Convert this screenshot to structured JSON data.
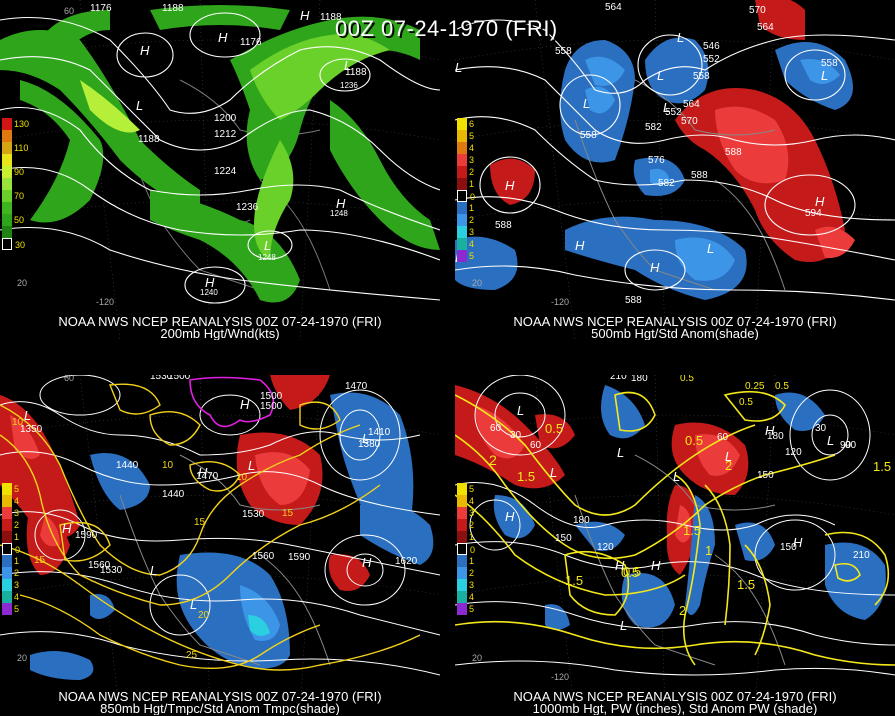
{
  "title": "00Z 07-24-1970 (FRI)",
  "panels": [
    {
      "id": "p200",
      "caption_line1": "NOAA NWS NCEP REANALYSIS 00Z 07-24-1970 (FRI)",
      "caption_line2": "200mb Hgt/Wnd(kts)",
      "legend_labels": [
        "130",
        "110",
        "90",
        "70",
        "50",
        "30"
      ],
      "contour_labels": [
        "1176",
        "1188",
        "1188",
        "1176",
        "1200",
        "1212",
        "1224",
        "1236",
        "1188",
        "1248",
        "1240",
        "1248",
        "1236",
        "1188"
      ],
      "highs_lows": [
        "H",
        "H",
        "H",
        "L",
        "L",
        "H",
        "H",
        "L"
      ],
      "lat_labels": [
        "20",
        "-120",
        "60"
      ],
      "colors": {
        "wind_light": "#b6ef3a",
        "wind_mid": "#69d129",
        "wind_dark": "#2fa51c"
      }
    },
    {
      "id": "p500",
      "caption_line1": "NOAA NWS NCEP REANALYSIS 00Z 07-24-1970 (FRI)",
      "caption_line2": "500mb Hgt/Std Anom(shade)",
      "legend_labels": [
        "6",
        "5",
        "4",
        "3",
        "2",
        "1",
        "0",
        "1",
        "2",
        "3",
        "4",
        "5"
      ],
      "contour_labels": [
        "564",
        "570",
        "558",
        "558",
        "564",
        "558",
        "552",
        "546",
        "564",
        "570",
        "558",
        "552",
        "576",
        "582",
        "588",
        "588",
        "594",
        "588",
        "588",
        "582"
      ],
      "highs_lows": [
        "L",
        "L",
        "L",
        "L",
        "L",
        "L",
        "H",
        "H",
        "H",
        "L",
        "H",
        "L"
      ],
      "lat_labels": [
        "-120",
        "20"
      ],
      "colors": {
        "pos": "#c41a1a",
        "pos_light": "#ec3b3b",
        "neg": "#2a6fc0",
        "neg_light": "#3d95e8"
      }
    },
    {
      "id": "p850",
      "caption_line1": "NOAA NWS NCEP REANALYSIS 00Z 07-24-1970 (FRI)",
      "caption_line2": "850mb Hgt/Tmpc/Std Anom Tmpc(shade)",
      "legend_labels": [
        "5",
        "4",
        "3",
        "2",
        "1",
        "0",
        "1",
        "2",
        "3",
        "4",
        "5"
      ],
      "contour_labels": [
        "1530",
        "1500",
        "1470",
        "1500",
        "1410",
        "1380",
        "1350",
        "1440",
        "1440",
        "1470",
        "1530",
        "1590",
        "1560",
        "1590",
        "1620",
        "1560",
        "1500",
        "1530",
        "10",
        "15",
        "10",
        "10",
        "15",
        "25",
        "20",
        "15"
      ],
      "highs_lows": [
        "L",
        "L",
        "H",
        "L",
        "H",
        "H",
        "L",
        "L",
        "H"
      ],
      "lat_labels": [
        "60",
        "20"
      ],
      "colors": {
        "temp": "#f4d21a",
        "magenta": "#e020e0"
      }
    },
    {
      "id": "p1000",
      "caption_line1": "NOAA NWS NCEP REANALYSIS 00Z 07-24-1970 (FRI)",
      "caption_line2": "1000mb Hgt, PW (inches), Std Anom PW (shade)",
      "legend_labels": [
        "5",
        "4",
        "3",
        "2",
        "1",
        "0",
        "1",
        "2",
        "3",
        "4",
        "5"
      ],
      "contour_labels": [
        "210",
        "180",
        "0.5",
        "0.5",
        "0.25",
        "0.5",
        "90",
        "30",
        "60",
        "90",
        "120",
        "180",
        "60",
        "150",
        "2",
        "1.5",
        "0.5",
        "0.5",
        "1.5",
        "2",
        "1.5",
        "0.5",
        "1.5",
        "120",
        "180",
        "150",
        "210",
        "1.5",
        "1",
        "2",
        "0.5",
        "150",
        "60",
        "30",
        "90"
      ],
      "highs_lows": [
        "L",
        "L",
        "L",
        "L",
        "H",
        "H",
        "L",
        "L",
        "H",
        "H",
        "H",
        "L"
      ],
      "lat_labels": [
        "-120",
        "20"
      ],
      "colors": {
        "pw": "#f4e81a"
      }
    }
  ]
}
